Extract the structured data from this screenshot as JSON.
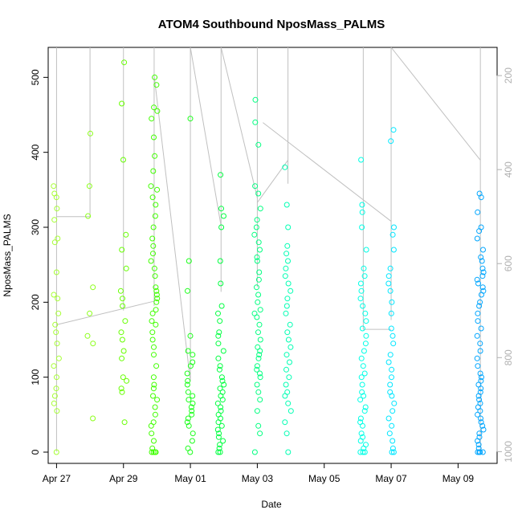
{
  "chart_data": {
    "type": "scatter",
    "title": "ATOM4 Southbound NposMass_PALMS",
    "xlabel": "Date",
    "ylabel": "NposMass_PALMS",
    "x_ticks": [
      "Apr 27",
      "Apr 29",
      "May 01",
      "May 03",
      "May 05",
      "May 07",
      "May 09"
    ],
    "y_ticks": [
      "0",
      "100",
      "200",
      "300",
      "400",
      "500"
    ],
    "y2_ticks": [
      "200",
      "400",
      "600",
      "800",
      "1000"
    ],
    "xlim": [
      "2018-04-26T18:00",
      "2018-05-10T04:00"
    ],
    "ylim": [
      -15,
      540
    ],
    "y2lim": [
      1025,
      140
    ],
    "y2_reversed": true,
    "point_style": "open-circle",
    "point_color_scale": [
      "#80ff00",
      "#00ff40",
      "#00ffc0",
      "#00e0ff",
      "#0090ff"
    ],
    "line_color": "#c0c0c0",
    "grid": false,
    "clusters": [
      {
        "x": "2018-04-27T00:00",
        "color": "#a6ff33",
        "values": [
          0,
          55,
          65,
          75,
          85,
          100,
          115,
          125,
          145,
          160,
          170,
          185,
          205,
          210,
          240,
          280,
          285,
          310,
          325,
          340,
          345,
          355
        ]
      },
      {
        "x": "2018-04-28T00:00",
        "color": "#8cff1a",
        "values": [
          45,
          145,
          155,
          185,
          220,
          315,
          355,
          425
        ]
      },
      {
        "x": "2018-04-29T00:00",
        "color": "#66ff00",
        "values": [
          40,
          80,
          85,
          95,
          100,
          125,
          135,
          150,
          160,
          175,
          195,
          205,
          215,
          245,
          270,
          290,
          390,
          465,
          520
        ]
      },
      {
        "x": "2018-04-29T22:00",
        "color": "#40ff00",
        "values": [
          0,
          0,
          0,
          0,
          5,
          15,
          25,
          35,
          40,
          50,
          60,
          70,
          75,
          85,
          90,
          100,
          115,
          130,
          140,
          150,
          160,
          170,
          175,
          185,
          190,
          200,
          205,
          210,
          215,
          220,
          235,
          245,
          255,
          265,
          275,
          285,
          300,
          315,
          330,
          340,
          350,
          355,
          375,
          395,
          420,
          445,
          455,
          460,
          490,
          500
        ]
      },
      {
        "x": "2018-05-01T00:00",
        "color": "#1aff1a",
        "values": [
          0,
          5,
          15,
          25,
          35,
          40,
          45,
          50,
          55,
          60,
          65,
          70,
          75,
          80,
          90,
          95,
          105,
          115,
          120,
          130,
          135,
          155,
          215,
          255,
          445
        ]
      },
      {
        "x": "2018-05-01T22:00",
        "color": "#00ff40",
        "values": [
          0,
          0,
          5,
          10,
          15,
          20,
          25,
          30,
          35,
          40,
          45,
          50,
          55,
          60,
          65,
          70,
          75,
          80,
          85,
          90,
          95,
          100,
          110,
          115,
          125,
          135,
          145,
          155,
          160,
          175,
          185,
          195,
          225,
          255,
          300,
          315,
          325,
          370
        ]
      },
      {
        "x": "2018-05-03T00:00",
        "color": "#00ff80",
        "values": [
          0,
          25,
          35,
          55,
          70,
          80,
          90,
          100,
          105,
          110,
          115,
          125,
          130,
          135,
          140,
          150,
          160,
          170,
          180,
          185,
          190,
          200,
          210,
          220,
          230,
          240,
          255,
          260,
          270,
          280,
          290,
          300,
          310,
          325,
          345,
          355,
          410,
          440,
          470
        ]
      },
      {
        "x": "2018-05-03T22:00",
        "color": "#00ffb3",
        "values": [
          0,
          25,
          40,
          55,
          65,
          75,
          80,
          90,
          100,
          110,
          120,
          130,
          140,
          150,
          160,
          170,
          185,
          195,
          205,
          215,
          225,
          235,
          245,
          255,
          265,
          275,
          300,
          330,
          380
        ]
      },
      {
        "x": "2018-05-06T04:00",
        "color": "#00ffe6",
        "values": [
          0,
          0,
          0,
          5,
          10,
          15,
          20,
          25,
          35,
          40,
          45,
          55,
          60,
          70,
          75,
          80,
          90,
          100,
          105,
          115,
          125,
          135,
          145,
          155,
          165,
          175,
          185,
          195,
          205,
          215,
          225,
          235,
          245,
          270,
          300,
          320,
          330,
          390
        ]
      },
      {
        "x": "2018-05-07T00:00",
        "color": "#00e6ff",
        "values": [
          0,
          0,
          5,
          15,
          25,
          35,
          45,
          55,
          65,
          75,
          80,
          90,
          100,
          110,
          120,
          130,
          145,
          155,
          165,
          185,
          200,
          215,
          225,
          235,
          245,
          270,
          290,
          300,
          415,
          430
        ]
      },
      {
        "x": "2018-05-09T16:00",
        "color": "#00a6ff",
        "values": [
          0,
          0,
          0,
          0,
          5,
          10,
          15,
          20,
          25,
          30,
          35,
          40,
          45,
          50,
          55,
          60,
          65,
          70,
          75,
          80,
          85,
          90,
          95,
          100,
          105,
          115,
          125,
          135,
          145,
          155,
          165,
          175,
          185,
          195,
          200,
          210,
          215,
          220,
          225,
          230,
          235,
          240,
          245,
          255,
          260,
          270,
          285,
          295,
          300,
          320,
          340,
          345
        ]
      }
    ],
    "altitude_segments": [
      {
        "from": [
          "2018-04-27T00:00",
          1000
        ],
        "to": [
          "2018-04-27T00:00",
          140
        ]
      },
      {
        "from": [
          "2018-04-27T00:00",
          500
        ],
        "to": [
          "2018-04-28T00:00",
          500
        ]
      },
      {
        "from": [
          "2018-04-28T00:00",
          500
        ],
        "to": [
          "2018-04-28T00:00",
          140
        ]
      },
      {
        "from": [
          "2018-04-27T00:00",
          730
        ],
        "to": [
          "2018-04-29T22:00",
          680
        ]
      },
      {
        "from": [
          "2018-04-29T00:00",
          700
        ],
        "to": [
          "2018-04-29T00:00",
          140
        ]
      },
      {
        "from": [
          "2018-04-29T22:00",
          690
        ],
        "to": [
          "2018-04-29T22:00",
          140
        ]
      },
      {
        "from": [
          "2018-04-29T22:00",
          200
        ],
        "to": [
          "2018-05-01T00:00",
          850
        ]
      },
      {
        "from": [
          "2018-05-01T00:00",
          850
        ],
        "to": [
          "2018-05-01T00:00",
          140
        ]
      },
      {
        "from": [
          "2018-05-01T00:00",
          140
        ],
        "to": [
          "2018-05-01T22:00",
          520
        ]
      },
      {
        "from": [
          "2018-05-01T22:00",
          660
        ],
        "to": [
          "2018-05-01T22:00",
          140
        ]
      },
      {
        "from": [
          "2018-05-01T22:00",
          140
        ],
        "to": [
          "2018-05-03T00:00",
          460
        ]
      },
      {
        "from": [
          "2018-05-03T00:00",
          650
        ],
        "to": [
          "2018-05-03T00:00",
          140
        ]
      },
      {
        "from": [
          "2018-05-03T04:00",
          300
        ],
        "to": [
          "2018-05-07T00:00",
          510
        ]
      },
      {
        "from": [
          "2018-05-03T00:00",
          470
        ],
        "to": [
          "2018-05-03T22:00",
          380
        ]
      },
      {
        "from": [
          "2018-05-03T22:00",
          430
        ],
        "to": [
          "2018-05-03T22:00",
          140
        ]
      },
      {
        "from": [
          "2018-05-06T04:00",
          740
        ],
        "to": [
          "2018-05-06T04:00",
          140
        ]
      },
      {
        "from": [
          "2018-05-06T04:00",
          740
        ],
        "to": [
          "2018-05-07T00:00",
          740
        ]
      },
      {
        "from": [
          "2018-05-07T00:00",
          720
        ],
        "to": [
          "2018-05-07T00:00",
          140
        ]
      },
      {
        "from": [
          "2018-05-07T00:00",
          140
        ],
        "to": [
          "2018-05-09T16:00",
          380
        ]
      },
      {
        "from": [
          "2018-05-09T16:00",
          1000
        ],
        "to": [
          "2018-05-09T16:00",
          140
        ]
      }
    ]
  }
}
